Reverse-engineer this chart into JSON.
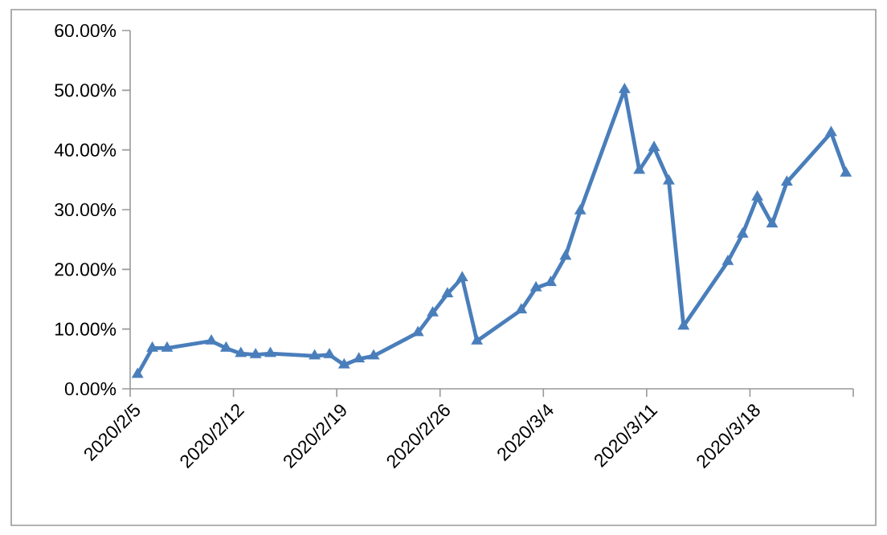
{
  "chart_data": {
    "type": "line",
    "color": "#4a7ebb",
    "marker": "triangle",
    "line_style": "solid",
    "grid": false,
    "x": [
      "2020-02-05T12:00",
      "2020-02-06T12:00",
      "2020-02-07T12:00",
      "2020-02-10T12:00",
      "2020-02-11T12:00",
      "2020-02-12T12:00",
      "2020-02-13T12:00",
      "2020-02-14T12:00",
      "2020-02-17T12:00",
      "2020-02-18T12:00",
      "2020-02-19T12:00",
      "2020-02-20T12:00",
      "2020-02-21T12:00",
      "2020-02-24T12:00",
      "2020-02-25T12:00",
      "2020-02-26T12:00",
      "2020-02-27T12:00",
      "2020-02-28T12:00",
      "2020-03-02T12:00",
      "2020-03-03T12:00",
      "2020-03-04T12:00",
      "2020-03-05T12:00",
      "2020-03-06T12:00",
      "2020-03-09T12:00",
      "2020-03-10T12:00",
      "2020-03-11T12:00",
      "2020-03-12T12:00",
      "2020-03-13T12:00",
      "2020-03-16T12:00",
      "2020-03-17T12:00",
      "2020-03-18T12:00",
      "2020-03-19T12:00",
      "2020-03-20T12:00",
      "2020-03-23T12:00",
      "2020-03-24T12:00"
    ],
    "values": [
      2.4,
      6.8,
      6.8,
      8.0,
      6.8,
      5.9,
      5.7,
      5.9,
      5.5,
      5.7,
      4.0,
      5.0,
      5.5,
      9.4,
      12.7,
      15.9,
      18.6,
      8.0,
      13.2,
      16.9,
      17.8,
      22.2,
      29.8,
      50.1,
      36.6,
      40.4,
      34.8,
      10.5,
      21.3,
      25.9,
      32.1,
      27.6,
      34.6,
      42.9,
      36.1
    ],
    "xlim": [
      "2020-02-05",
      "2020-03-25"
    ],
    "xticks": [
      {
        "value": "2020-02-05",
        "label": "2020/2/5"
      },
      {
        "value": "2020-02-12",
        "label": "2020/2/12"
      },
      {
        "value": "2020-02-19",
        "label": "2020/2/19"
      },
      {
        "value": "2020-02-26",
        "label": "2020/2/26"
      },
      {
        "value": "2020-03-04",
        "label": "2020/3/4"
      },
      {
        "value": "2020-03-11",
        "label": "2020/3/11"
      },
      {
        "value": "2020-03-18",
        "label": "2020/3/18"
      },
      {
        "value": "2020-03-25",
        "label": null
      }
    ],
    "ylim": [
      0,
      60
    ],
    "yticks": [
      {
        "value": 0,
        "label": "0.00%"
      },
      {
        "value": 10,
        "label": "10.00%"
      },
      {
        "value": 20,
        "label": "20.00%"
      },
      {
        "value": 30,
        "label": "30.00%"
      },
      {
        "value": 40,
        "label": "40.00%"
      },
      {
        "value": 50,
        "label": "50.00%"
      },
      {
        "value": 60,
        "label": "60.00%"
      }
    ]
  }
}
